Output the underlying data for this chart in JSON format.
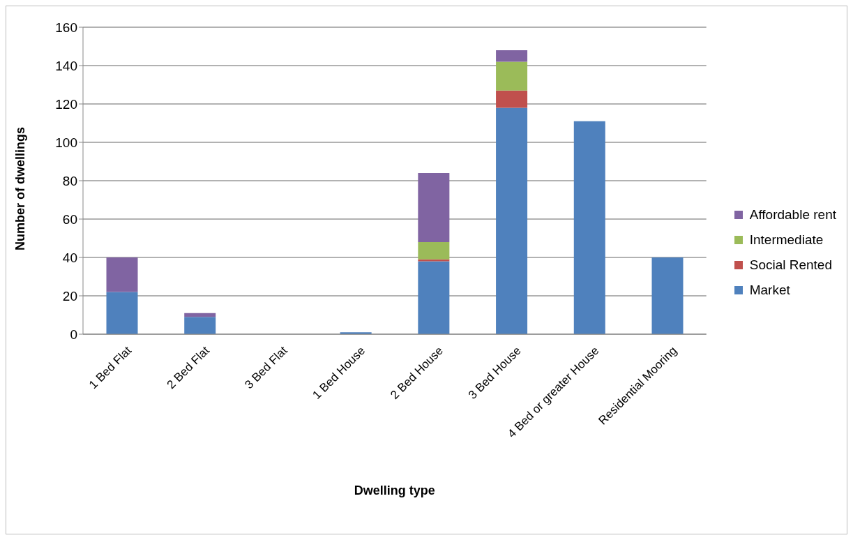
{
  "chart_data": {
    "type": "bar",
    "stacked": true,
    "xlabel": "Dwelling type",
    "ylabel": "Number of dwellings",
    "categories": [
      "1 Bed Flat",
      "2 Bed Flat",
      "3 Bed Flat",
      "1 Bed House",
      "2 Bed House",
      "3 Bed House",
      "4 Bed or greater House",
      "Residential Mooring"
    ],
    "series": [
      {
        "name": "Market",
        "color": "#4f81bd",
        "values": [
          22,
          9,
          0,
          1,
          38,
          118,
          111,
          40
        ]
      },
      {
        "name": "Social Rented",
        "color": "#c0504d",
        "values": [
          0,
          0,
          0,
          0,
          1,
          9,
          0,
          0
        ]
      },
      {
        "name": "Intermediate",
        "color": "#9bbb59",
        "values": [
          0,
          0,
          0,
          0,
          9,
          15,
          0,
          0
        ]
      },
      {
        "name": "Affordable rent",
        "color": "#8064a2",
        "values": [
          18,
          2,
          0,
          0,
          36,
          6,
          0,
          0
        ]
      }
    ],
    "ylim": [
      0,
      160
    ],
    "yticks": [
      0,
      20,
      40,
      60,
      80,
      100,
      120,
      140,
      160
    ],
    "grid": "y",
    "legend": "right"
  }
}
